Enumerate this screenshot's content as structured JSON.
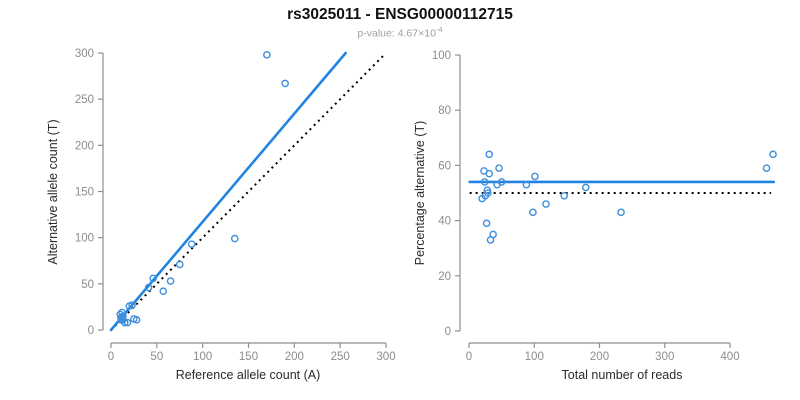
{
  "header": {
    "title": "rs3025011 - ENSG00000112715",
    "subtitle_prefix": "p-value: ",
    "subtitle_value": "4.67×10",
    "subtitle_exponent": "-4"
  },
  "colors": {
    "line_blue": "#2383e2",
    "point_blue": "#3f8fdd",
    "ref_black": "#000000",
    "axis_gray": "#8f8f8f",
    "tick_text_gray": "#8c8c8c",
    "axis_title_dark": "#2b2b2b"
  },
  "chart_data": [
    {
      "type": "scatter",
      "panel": "left",
      "xlabel": "Reference allele count (A)",
      "ylabel": "Alternative allele count (T)",
      "xlim": [
        0,
        300
      ],
      "ylim": [
        0,
        300
      ],
      "xticks": [
        0,
        50,
        100,
        150,
        200,
        250,
        300
      ],
      "yticks": [
        0,
        50,
        100,
        150,
        200,
        250,
        300
      ],
      "grid": false,
      "legend": null,
      "points": [
        [
          170,
          298
        ],
        [
          190,
          267
        ],
        [
          135,
          99
        ],
        [
          88,
          93
        ],
        [
          75,
          71
        ],
        [
          65,
          53
        ],
        [
          57,
          42
        ],
        [
          46,
          56
        ],
        [
          41,
          46
        ],
        [
          23,
          27
        ],
        [
          20,
          26
        ],
        [
          12,
          19
        ],
        [
          10,
          17
        ],
        [
          25,
          12
        ],
        [
          28,
          11
        ],
        [
          15,
          8
        ],
        [
          18,
          8
        ],
        [
          11,
          13
        ],
        [
          12,
          12
        ],
        [
          13,
          15
        ],
        [
          11,
          11
        ],
        [
          12,
          14
        ],
        [
          13,
          11
        ]
      ],
      "fit_line": {
        "x1": 0,
        "y1": 0,
        "x2": 256,
        "y2": 300,
        "style": "solid"
      },
      "ref_line": {
        "x1": 0,
        "y1": 0,
        "x2": 298,
        "y2": 298,
        "style": "dotted"
      }
    },
    {
      "type": "scatter",
      "panel": "right",
      "xlabel": "Total number of reads",
      "ylabel": "Percentage alternative (T)",
      "xlim": [
        0,
        470
      ],
      "ylim": [
        0,
        100
      ],
      "xticks": [
        0,
        100,
        200,
        300,
        400
      ],
      "yticks": [
        0,
        20,
        40,
        60,
        80,
        100
      ],
      "grid": false,
      "legend": null,
      "points": [
        [
          466,
          64
        ],
        [
          456,
          59
        ],
        [
          233,
          43
        ],
        [
          179,
          52
        ],
        [
          146,
          49
        ],
        [
          118,
          46
        ],
        [
          98,
          43
        ],
        [
          101,
          56
        ],
        [
          88,
          53
        ],
        [
          46,
          59
        ],
        [
          50,
          54
        ],
        [
          31,
          64
        ],
        [
          23,
          58
        ],
        [
          31,
          57
        ],
        [
          37,
          35
        ],
        [
          33,
          33
        ],
        [
          27,
          39
        ],
        [
          20,
          48
        ],
        [
          25,
          49
        ],
        [
          28,
          51
        ],
        [
          29,
          50
        ],
        [
          43,
          53
        ],
        [
          24,
          54
        ]
      ],
      "fit_line": {
        "x1": 1,
        "y1": 54,
        "x2": 467,
        "y2": 54,
        "style": "solid"
      },
      "ref_line": {
        "x1": 1,
        "y1": 50,
        "x2": 463,
        "y2": 50,
        "style": "dotted"
      }
    }
  ]
}
